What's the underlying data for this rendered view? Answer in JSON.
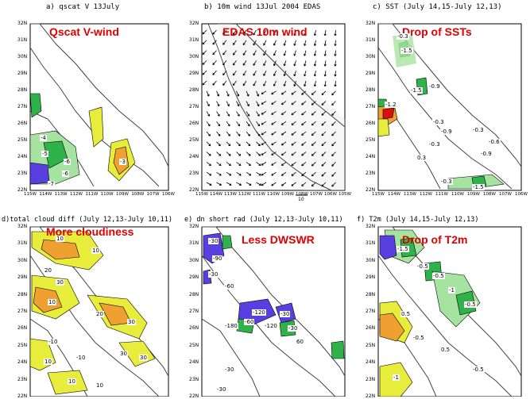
{
  "panels": [
    {
      "title": "a) qscat V 13July",
      "overlay": "Qscat V-wind",
      "y_ticks": [
        "32N",
        "31N",
        "30N",
        "29N",
        "28N",
        "27N",
        "26N",
        "25N",
        "24N",
        "23N",
        "22N"
      ],
      "x_ticks": [
        "115W",
        "114W",
        "113W",
        "112W",
        "111W",
        "110W",
        "109W",
        "108W",
        "107W",
        "106W"
      ],
      "contour_labels": [
        "-4",
        "-5",
        "-6",
        "-6",
        "-7",
        "-3"
      ]
    },
    {
      "title": "b) 10m wind 13Jul 2004 EDAS",
      "overlay": "EDAS 10m wind",
      "y_ticks": [
        "32N",
        "31N",
        "30N",
        "29N",
        "28N",
        "27N",
        "26N",
        "25N",
        "24N",
        "23N",
        "22N"
      ],
      "x_ticks": [
        "115W",
        "114W",
        "113W",
        "112W",
        "111W",
        "110W",
        "109W",
        "108W",
        "107W",
        "106W",
        "105W"
      ],
      "vector_ref": "10"
    },
    {
      "title": "c) SST (July 14,15-July 12,13)",
      "overlay": "Drop of SSTs",
      "y_ticks": [
        "32N",
        "31N",
        "30N",
        "29N",
        "28N",
        "27N",
        "26N",
        "25N",
        "24N",
        "23N",
        "22N"
      ],
      "x_ticks": [
        "115W",
        "114W",
        "113W",
        "112W",
        "111W",
        "110W",
        "109W",
        "108W",
        "107W",
        "106W"
      ],
      "contour_labels": [
        "-0.3",
        "-1.5",
        "-0.9",
        "-1.5",
        "-1.2",
        "-0.3",
        "-0.9",
        "-0.3",
        "0.3",
        "-0.3",
        "-0.6",
        "-0.9",
        "-0.3",
        "-1.5"
      ]
    },
    {
      "title": "d)total cloud diff (July 12,13-July 10,11)",
      "overlay": "More cloudiness",
      "y_ticks": [
        "32N",
        "31N",
        "30N",
        "29N",
        "28N",
        "27N",
        "26N",
        "25N",
        "24N",
        "23N",
        "22N"
      ],
      "x_ticks": [],
      "contour_labels": [
        "10",
        "10",
        "20",
        "30",
        "10",
        "20",
        "30",
        "-10",
        "10",
        "-10",
        "10",
        "30",
        "30",
        "10"
      ]
    },
    {
      "title": "e) dn short rad (July 12,13-July 10,11)",
      "overlay": "Less DWSWR",
      "y_ticks": [
        "32N",
        "31N",
        "30N",
        "29N",
        "28N",
        "27N",
        "26N",
        "25N",
        "24N",
        "23N",
        "22N"
      ],
      "x_ticks": [],
      "contour_labels": [
        "-30",
        "-90",
        "-30",
        "-60",
        "-120",
        "-30",
        "-60",
        "-180",
        "-120",
        "-30",
        "60",
        "-30",
        "-30"
      ]
    },
    {
      "title": "f) T2m (July 14,15-July 12,13)",
      "overlay": "Drop of T2m",
      "y_ticks": [
        "32N",
        "31N",
        "30N",
        "29N",
        "28N",
        "27N",
        "26N",
        "25N",
        "24N",
        "23N",
        "22N"
      ],
      "x_ticks": [],
      "contour_labels": [
        "-1.5",
        "-0.5",
        "-0.5",
        "-1",
        "-0.5",
        "0.5",
        "-0.5",
        "0.5",
        "-1",
        "-0.5"
      ]
    }
  ],
  "colors": {
    "yellow": "#e8ec3a",
    "orange": "#f0a030",
    "green": "#2fb24a",
    "lightgreen": "#a6e3a0",
    "red": "#d81010",
    "blue": "#5a3fe0",
    "lightgray": "#d8d8d8",
    "overlay_text": "#e00000"
  }
}
